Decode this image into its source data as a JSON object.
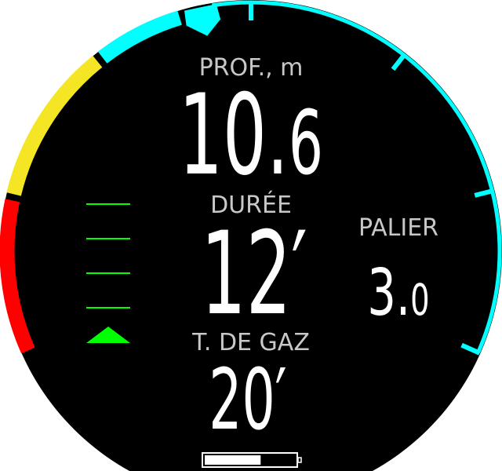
{
  "depth": {
    "label": "PROF., m",
    "value_main": "10.",
    "value_decimal": "6"
  },
  "duration": {
    "label": "DURÉE",
    "value": "12′"
  },
  "stop": {
    "label": "PALIER",
    "value_main": "3.",
    "value_decimal": "0"
  },
  "gas_time": {
    "label": "T. DE GAZ",
    "value": "20′"
  },
  "battery": {
    "level_percent": 62
  },
  "ascent_rate": {
    "bars": 4,
    "indicator": "triangle-up-icon",
    "color": "#00ff00"
  },
  "colors": {
    "ring_cyan": "#00ffff",
    "ring_yellow": "#f5e625",
    "ring_red": "#ff0000",
    "background": "#000000",
    "label": "#c8c8c8"
  }
}
